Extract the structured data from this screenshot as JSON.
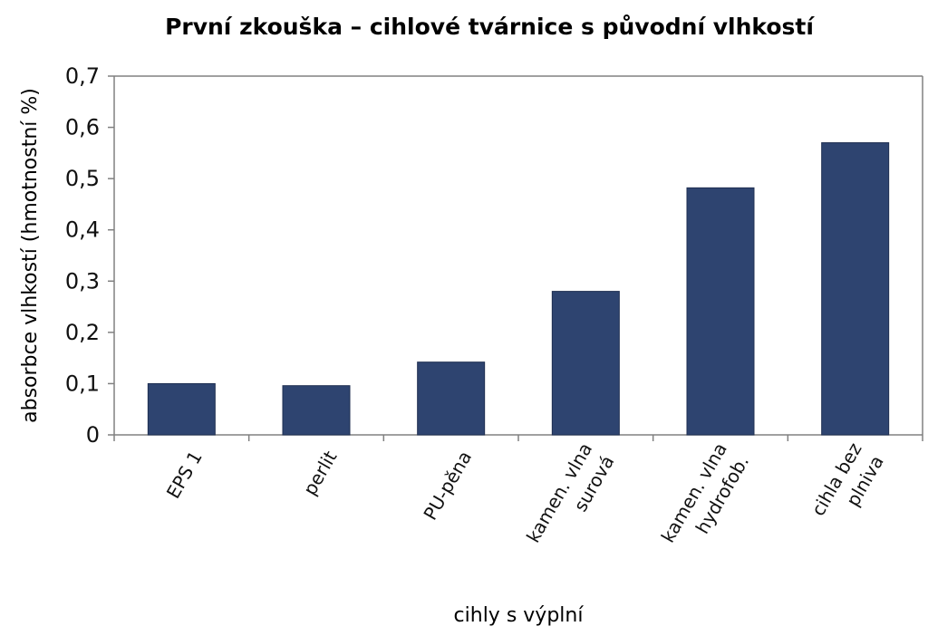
{
  "chart_data": {
    "type": "bar",
    "title": "První zkouška – cihlové tvárnice s původní vlhkostí",
    "xlabel": "cihly s výplní",
    "ylabel": "absorbce vlhkostí (hmotnostní %)",
    "categories": [
      [
        "EPS 1"
      ],
      [
        "perlit"
      ],
      [
        "PU-pěna"
      ],
      [
        "kamen. vlna",
        "surová"
      ],
      [
        "kamen. vlna",
        "hydrofob."
      ],
      [
        "cihla bez",
        "plniva"
      ]
    ],
    "values": [
      0.1,
      0.096,
      0.142,
      0.28,
      0.482,
      0.57
    ],
    "ylim": [
      0,
      0.7
    ],
    "yticks": [
      0,
      0.1,
      0.2,
      0.3,
      0.4,
      0.5,
      0.6,
      0.7
    ],
    "ytick_labels": [
      "0",
      "0,1",
      "0,2",
      "0,3",
      "0,4",
      "0,5",
      "0,6",
      "0,7"
    ],
    "grid": false,
    "legend": "none",
    "bar_color": "#2e4470"
  }
}
